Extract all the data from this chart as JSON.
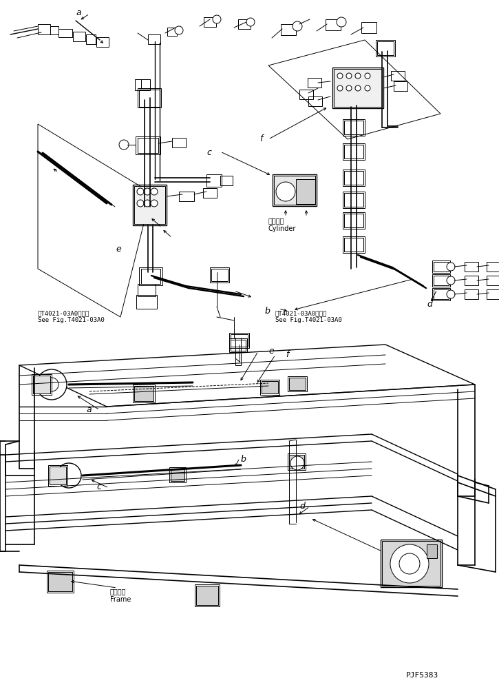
{
  "bg_color": "#ffffff",
  "line_color": "#000000",
  "fig_width": 7.25,
  "fig_height": 9.94,
  "dpi": 100,
  "part_code": "PJF5383",
  "text_left_ref1": "笮T4021-03A0図参照\nSee Fig.T4021-03A0",
  "text_right_ref": "笮T4021-03A0図参照\nSee Fig.T4021-03A0",
  "text_cylinder": "シリンダ\nCylinder",
  "text_frame": "フレーム\nFrame"
}
